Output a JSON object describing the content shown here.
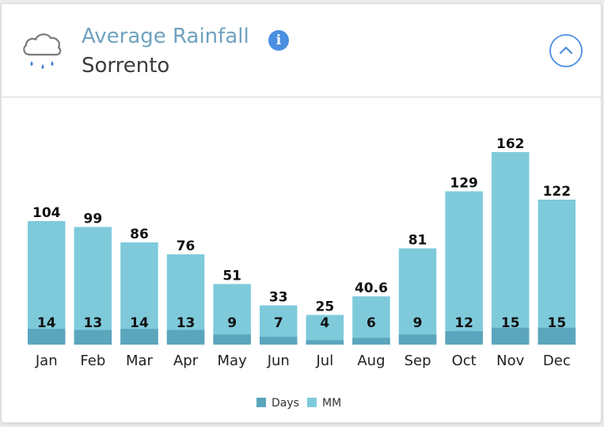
{
  "header": {
    "title": "Average Rainfall",
    "subtitle": "Sorrento",
    "info_glyph": "i",
    "weather_icon": "rain-cloud-icon",
    "info_icon": "info-icon",
    "collapse_icon": "chevron-up-icon"
  },
  "colors": {
    "days": "#5ba5bd",
    "mm": "#7ecadb",
    "title": "#6fa3bf",
    "accent": "#4a8fe0"
  },
  "chart_data": {
    "type": "bar",
    "stacked": true,
    "categories": [
      "Jan",
      "Feb",
      "Mar",
      "Apr",
      "May",
      "Jun",
      "Jul",
      "Aug",
      "Sep",
      "Oct",
      "Nov",
      "Dec"
    ],
    "series": [
      {
        "name": "Days",
        "values": [
          14,
          13,
          14,
          13,
          9,
          7,
          4,
          6,
          9,
          12,
          15,
          15
        ]
      },
      {
        "name": "MM",
        "values": [
          104,
          99,
          86,
          76,
          51,
          33,
          25,
          40.6,
          81,
          129,
          162,
          122
        ]
      }
    ],
    "title": "Average Rainfall",
    "subtitle": "Sorrento",
    "legend_position": "bottom-center",
    "grid": false
  }
}
